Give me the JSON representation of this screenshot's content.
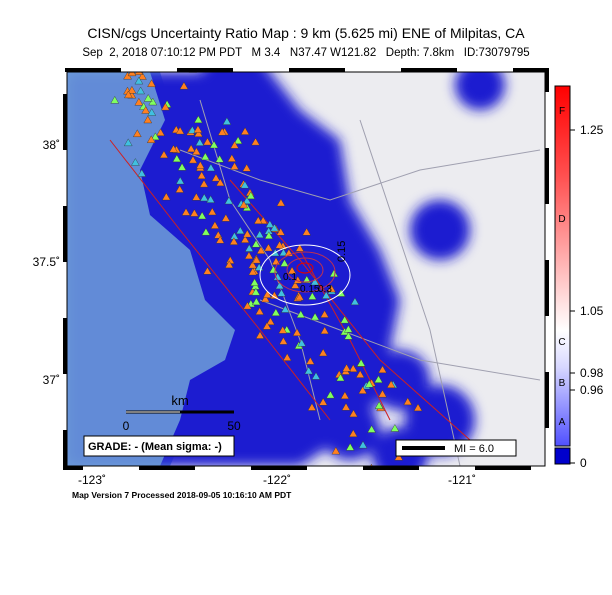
{
  "header": {
    "title": "CISN/cgs Uncertainty Ratio Map : 9 km (5.625 mi) ENE of Milpitas, CA",
    "subtitle": "Sep  2, 2018 07:10:12 PM PDT   M 3.4   N37.47 W121.82   Depth: 7.8km   ID:73079795"
  },
  "map": {
    "lon_labels": [
      "-123˚",
      "-122˚",
      "-121˚"
    ],
    "lat_labels": [
      "38˚",
      "37.5˚",
      "37˚"
    ],
    "scale": {
      "unit": "km",
      "labels": [
        "0",
        "50"
      ]
    },
    "grade": "GRADE: - (Mean sigma: -)",
    "legend": "MI = 6.0",
    "contour_labels": [
      "0.15",
      "0.1",
      "0.15",
      "0.3"
    ]
  },
  "colorbar": {
    "letters": [
      "F",
      "D",
      "C",
      "B",
      "A"
    ],
    "labels": [
      "1.25",
      "1.05",
      "0.98",
      "0.96",
      "0"
    ]
  },
  "footer": "Map Version 7 Processed 2018-09-05 10:16:10 AM PDT"
}
